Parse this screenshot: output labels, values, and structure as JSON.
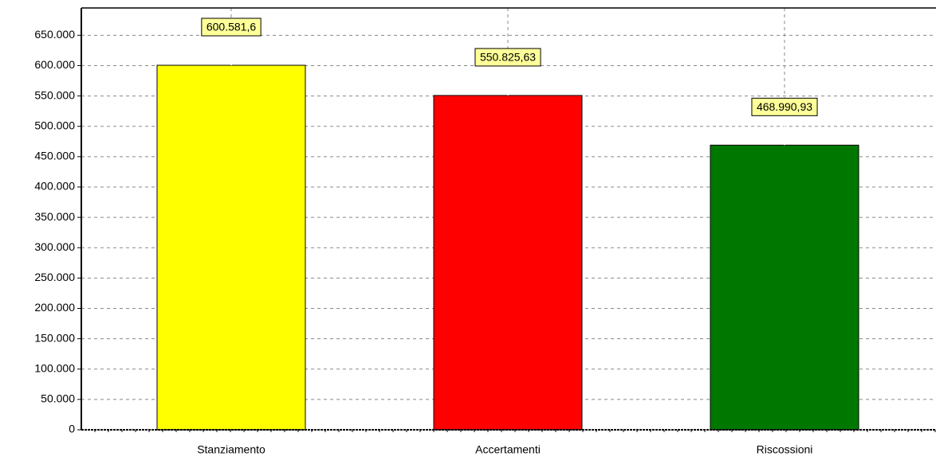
{
  "chart_data": {
    "type": "bar",
    "categories": [
      "Stanziamento",
      "Accertamenti",
      "Riscossioni"
    ],
    "values": [
      600581.6,
      550825.63,
      468990.93
    ],
    "value_labels": [
      "600.581,6",
      "550.825,63",
      "468.990,93"
    ],
    "colors": [
      "#ffff00",
      "#ff0000",
      "#007800"
    ],
    "ylim": [
      0,
      695000
    ],
    "yticks": [
      0,
      {
        "value": 50000,
        "label": "50.000"
      },
      {
        "value": 100000,
        "label": "100.000"
      },
      {
        "value": 150000,
        "label": "150.000"
      },
      {
        "value": 200000,
        "label": "200.000"
      },
      {
        "value": 250000,
        "label": "250.000"
      },
      {
        "value": 300000,
        "label": "300.000"
      },
      {
        "value": 350000,
        "label": "350.000"
      },
      {
        "value": 400000,
        "label": "400.000"
      },
      {
        "value": 450000,
        "label": "450.000"
      },
      {
        "value": 500000,
        "label": "500.000"
      },
      {
        "value": 550000,
        "label": "550.000"
      },
      {
        "value": 600000,
        "label": "600.000"
      },
      {
        "value": 650000,
        "label": "650.000"
      }
    ],
    "grid": true
  }
}
